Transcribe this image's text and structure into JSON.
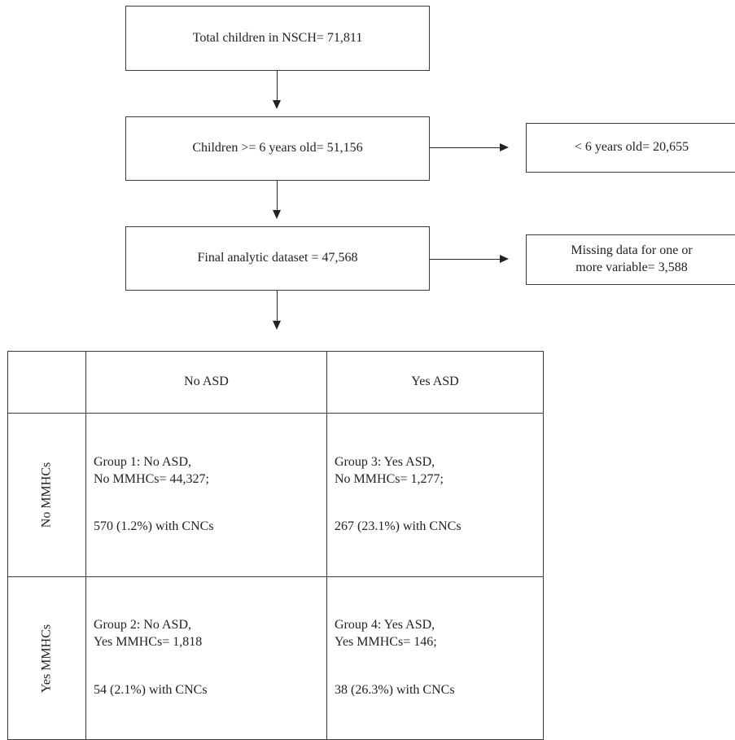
{
  "boxes": {
    "total": "Total children in NSCH= 71,811",
    "over6": "Children >= 6 years old= 51,156",
    "under6": "< 6 years old= 20,655",
    "final": "Final analytic dataset = 47,568",
    "missing_line1": "Missing data for one or",
    "missing_line2": "more variable= 3,588"
  },
  "table": {
    "col_headers": [
      "No ASD",
      "Yes ASD"
    ],
    "row_headers": [
      "No MMHCs",
      "Yes MMHCs"
    ],
    "cells": [
      [
        {
          "line1": "Group 1: No ASD,",
          "line2": "No MMHCs= 44,327;",
          "line3": "570 (1.2%) with CNCs"
        },
        {
          "line1": "Group 3: Yes ASD,",
          "line2": "No MMHCs= 1,277;",
          "line3": "267 (23.1%) with CNCs"
        }
      ],
      [
        {
          "line1": "Group 2: No ASD,",
          "line2": "Yes MMHCs= 1,818",
          "line3": "54 (2.1%) with CNCs"
        },
        {
          "line1": "Group 4: Yes ASD,",
          "line2": "Yes MMHCs= 146;",
          "line3": "38 (26.3%) with CNCs"
        }
      ]
    ]
  }
}
